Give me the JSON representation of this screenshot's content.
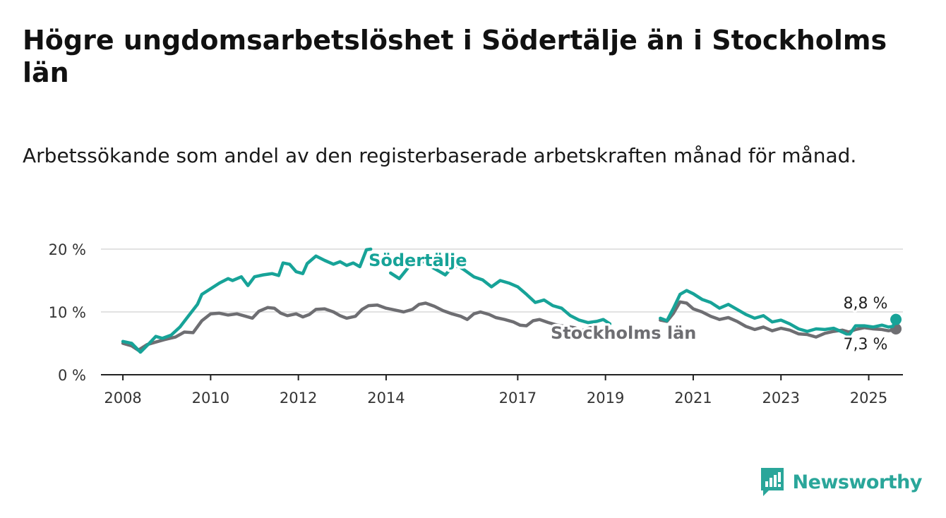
{
  "header": {
    "title": "Högre ungdomsarbetslöshet i Södertälje än i Stockholms län",
    "subtitle": "Arbetssökande som andel av den registerbaserade arbetskraften månad för månad."
  },
  "brand": {
    "name": "Newsworthy",
    "icon": "newsworthy-logo-icon",
    "color": "#2aa69a"
  },
  "colors": {
    "sodertalje": "#17a398",
    "stockholm": "#6e6e72",
    "grid": "#d9d9d9",
    "axis": "#222222"
  },
  "chart_data": {
    "type": "line",
    "title": "Högre ungdomsarbetslöshet i Södertälje än i Stockholms län",
    "subtitle": "Arbetssökande som andel av den registerbaserade arbetskraften månad för månad.",
    "xlabel": "",
    "ylabel": "",
    "xlim": [
      2007.5,
      2025.78
    ],
    "ylim": [
      0,
      20
    ],
    "y_ticks": [
      0,
      10,
      20
    ],
    "y_tick_labels": [
      "0 %",
      "10 %",
      "20 %"
    ],
    "x_ticks": [
      2008,
      2010,
      2012,
      2014,
      2017,
      2019,
      2021,
      2023,
      2025
    ],
    "x_tick_labels": [
      "2008",
      "2010",
      "2012",
      "2014",
      "2017",
      "2019",
      "2021",
      "2023",
      "2025"
    ],
    "grid": true,
    "legend": "inline labels",
    "series": [
      {
        "name": "Södertälje",
        "color": "#17a398",
        "label": "Södertälje",
        "end_label": "8,8 %",
        "points": [
          [
            2008.0,
            5.3
          ],
          [
            2008.2,
            5.0
          ],
          [
            2008.4,
            3.6
          ],
          [
            2008.6,
            5.0
          ],
          [
            2008.75,
            6.1
          ],
          [
            2008.9,
            5.8
          ],
          [
            2009.1,
            6.3
          ],
          [
            2009.3,
            7.6
          ],
          [
            2009.5,
            9.4
          ],
          [
            2009.7,
            11.2
          ],
          [
            2009.8,
            12.8
          ],
          [
            2010.0,
            13.7
          ],
          [
            2010.2,
            14.6
          ],
          [
            2010.4,
            15.3
          ],
          [
            2010.5,
            15.0
          ],
          [
            2010.7,
            15.6
          ],
          [
            2010.85,
            14.2
          ],
          [
            2011.0,
            15.6
          ],
          [
            2011.2,
            15.9
          ],
          [
            2011.4,
            16.1
          ],
          [
            2011.55,
            15.8
          ],
          [
            2011.65,
            17.8
          ],
          [
            2011.8,
            17.6
          ],
          [
            2011.95,
            16.4
          ],
          [
            2012.1,
            16.1
          ],
          [
            2012.2,
            17.7
          ],
          [
            2012.4,
            18.9
          ],
          [
            2012.6,
            18.2
          ],
          [
            2012.8,
            17.6
          ],
          [
            2012.95,
            18.0
          ],
          [
            2013.1,
            17.4
          ],
          [
            2013.25,
            17.8
          ],
          [
            2013.4,
            17.2
          ],
          [
            2013.55,
            19.9
          ],
          [
            2013.65,
            20.0
          ]
        ],
        "points_2": [
          [
            2014.1,
            16.2
          ],
          [
            2014.3,
            15.3
          ],
          [
            2014.45,
            16.6
          ],
          [
            2014.6,
            17.9
          ],
          [
            2014.75,
            18.3
          ],
          [
            2014.9,
            17.8
          ],
          [
            2015.05,
            17.1
          ],
          [
            2015.2,
            16.5
          ],
          [
            2015.35,
            15.9
          ],
          [
            2015.5,
            17.1
          ],
          [
            2015.65,
            17.3
          ],
          [
            2015.8,
            16.6
          ],
          [
            2016.0,
            15.6
          ],
          [
            2016.2,
            15.1
          ],
          [
            2016.4,
            14.0
          ],
          [
            2016.6,
            15.0
          ],
          [
            2016.8,
            14.6
          ],
          [
            2017.0,
            14.0
          ],
          [
            2017.2,
            12.8
          ],
          [
            2017.4,
            11.5
          ],
          [
            2017.6,
            11.9
          ],
          [
            2017.8,
            11.0
          ],
          [
            2018.0,
            10.6
          ],
          [
            2018.2,
            9.4
          ],
          [
            2018.4,
            8.7
          ],
          [
            2018.6,
            8.3
          ],
          [
            2018.8,
            8.5
          ],
          [
            2018.95,
            8.8
          ],
          [
            2019.1,
            8.1
          ]
        ],
        "points_3": [
          [
            2020.25,
            9.0
          ],
          [
            2020.4,
            8.6
          ],
          [
            2020.55,
            10.6
          ],
          [
            2020.7,
            12.8
          ],
          [
            2020.85,
            13.4
          ],
          [
            2021.0,
            12.9
          ],
          [
            2021.2,
            12.0
          ],
          [
            2021.4,
            11.5
          ],
          [
            2021.6,
            10.6
          ],
          [
            2021.8,
            11.2
          ],
          [
            2022.0,
            10.4
          ],
          [
            2022.2,
            9.6
          ],
          [
            2022.4,
            9.0
          ],
          [
            2022.6,
            9.4
          ],
          [
            2022.8,
            8.4
          ],
          [
            2023.0,
            8.7
          ],
          [
            2023.2,
            8.1
          ],
          [
            2023.4,
            7.3
          ],
          [
            2023.6,
            6.9
          ],
          [
            2023.8,
            7.3
          ],
          [
            2024.0,
            7.2
          ],
          [
            2024.2,
            7.4
          ],
          [
            2024.4,
            6.8
          ],
          [
            2024.55,
            6.3
          ],
          [
            2024.7,
            7.8
          ],
          [
            2024.9,
            7.8
          ],
          [
            2025.1,
            7.6
          ],
          [
            2025.3,
            7.9
          ],
          [
            2025.45,
            7.6
          ],
          [
            2025.55,
            7.7
          ],
          [
            2025.62,
            8.8
          ]
        ]
      },
      {
        "name": "Stockholms län",
        "color": "#6e6e72",
        "label": "Stockholms län",
        "end_label": "7,3 %",
        "points": [
          [
            2008.0,
            5.0
          ],
          [
            2008.2,
            4.6
          ],
          [
            2008.35,
            3.9
          ],
          [
            2008.55,
            4.8
          ],
          [
            2008.75,
            5.2
          ],
          [
            2008.95,
            5.6
          ],
          [
            2009.2,
            6.0
          ],
          [
            2009.4,
            6.8
          ],
          [
            2009.6,
            6.7
          ],
          [
            2009.8,
            8.6
          ],
          [
            2010.0,
            9.7
          ],
          [
            2010.2,
            9.8
          ],
          [
            2010.4,
            9.5
          ],
          [
            2010.6,
            9.7
          ],
          [
            2010.8,
            9.3
          ],
          [
            2010.95,
            9.0
          ],
          [
            2011.1,
            10.1
          ],
          [
            2011.3,
            10.7
          ],
          [
            2011.45,
            10.6
          ],
          [
            2011.6,
            9.8
          ],
          [
            2011.75,
            9.4
          ],
          [
            2011.95,
            9.7
          ],
          [
            2012.1,
            9.2
          ],
          [
            2012.25,
            9.6
          ],
          [
            2012.4,
            10.4
          ],
          [
            2012.6,
            10.5
          ],
          [
            2012.8,
            10.0
          ],
          [
            2012.95,
            9.4
          ],
          [
            2013.1,
            9.0
          ],
          [
            2013.3,
            9.3
          ],
          [
            2013.45,
            10.4
          ],
          [
            2013.6,
            11.0
          ],
          [
            2013.8,
            11.1
          ],
          [
            2014.0,
            10.6
          ],
          [
            2014.2,
            10.3
          ],
          [
            2014.4,
            10.0
          ],
          [
            2014.6,
            10.4
          ],
          [
            2014.75,
            11.2
          ],
          [
            2014.9,
            11.4
          ],
          [
            2015.1,
            10.9
          ],
          [
            2015.3,
            10.2
          ],
          [
            2015.5,
            9.7
          ],
          [
            2015.7,
            9.3
          ],
          [
            2015.85,
            8.8
          ],
          [
            2016.0,
            9.7
          ],
          [
            2016.15,
            10.0
          ],
          [
            2016.35,
            9.6
          ],
          [
            2016.5,
            9.1
          ],
          [
            2016.7,
            8.8
          ],
          [
            2016.9,
            8.4
          ],
          [
            2017.05,
            7.9
          ],
          [
            2017.2,
            7.8
          ],
          [
            2017.35,
            8.6
          ],
          [
            2017.5,
            8.8
          ],
          [
            2017.7,
            8.3
          ],
          [
            2017.9,
            7.9
          ],
          [
            2018.1,
            7.7
          ],
          [
            2018.3,
            7.5
          ],
          [
            2018.45,
            7.0
          ],
          [
            2018.65,
            7.5
          ],
          [
            2018.8,
            7.4
          ],
          [
            2018.95,
            7.2
          ],
          [
            2019.1,
            6.8
          ],
          [
            2019.3,
            6.7
          ],
          [
            2019.45,
            6.4
          ],
          [
            2019.6,
            6.8
          ],
          [
            2019.75,
            7.2
          ]
        ],
        "points_2": [
          [
            2020.25,
            8.7
          ],
          [
            2020.4,
            8.5
          ],
          [
            2020.55,
            9.8
          ],
          [
            2020.7,
            11.6
          ],
          [
            2020.85,
            11.4
          ],
          [
            2021.0,
            10.5
          ],
          [
            2021.2,
            10.0
          ],
          [
            2021.4,
            9.3
          ],
          [
            2021.6,
            8.8
          ],
          [
            2021.8,
            9.1
          ],
          [
            2022.0,
            8.5
          ],
          [
            2022.2,
            7.7
          ],
          [
            2022.4,
            7.2
          ],
          [
            2022.6,
            7.6
          ],
          [
            2022.8,
            7.0
          ],
          [
            2023.0,
            7.4
          ],
          [
            2023.2,
            7.1
          ],
          [
            2023.4,
            6.5
          ],
          [
            2023.6,
            6.4
          ],
          [
            2023.8,
            6.0
          ],
          [
            2024.0,
            6.6
          ],
          [
            2024.2,
            6.9
          ],
          [
            2024.4,
            7.1
          ],
          [
            2024.55,
            6.8
          ],
          [
            2024.7,
            7.2
          ],
          [
            2024.9,
            7.5
          ],
          [
            2025.1,
            7.3
          ],
          [
            2025.3,
            7.2
          ],
          [
            2025.45,
            7.0
          ],
          [
            2025.55,
            7.1
          ],
          [
            2025.62,
            7.3
          ]
        ]
      }
    ]
  }
}
